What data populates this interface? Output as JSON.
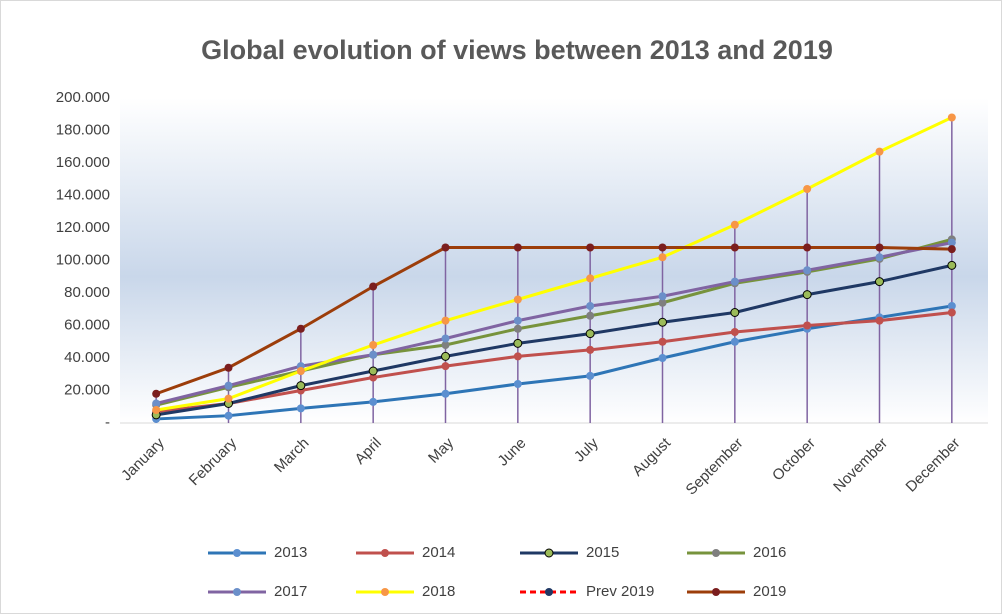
{
  "chart_data": {
    "type": "line",
    "title": "Global  evolution  of views between 2013 and 2019",
    "categories": [
      "January",
      "February",
      "March",
      "April",
      "May",
      "June",
      "July",
      "August",
      "September",
      "October",
      "November",
      "December"
    ],
    "ylim": [
      0,
      200000
    ],
    "yticks": [
      {
        "value": 0,
        "label": "-"
      },
      {
        "value": 20000,
        "label": "20.000"
      },
      {
        "value": 40000,
        "label": "40.000"
      },
      {
        "value": 60000,
        "label": "60.000"
      },
      {
        "value": 80000,
        "label": "80.000"
      },
      {
        "value": 100000,
        "label": "100.000"
      },
      {
        "value": 120000,
        "label": "120.000"
      },
      {
        "value": 140000,
        "label": "140.000"
      },
      {
        "value": 160000,
        "label": "160.000"
      },
      {
        "value": 180000,
        "label": "180.000"
      },
      {
        "value": 200000,
        "label": "200.000"
      }
    ],
    "grid": false,
    "drop_lines": true,
    "drop_line_color": "#8064a2",
    "legend": "bottom",
    "series": [
      {
        "name": "2013",
        "color": "#2e75b6",
        "marker_color": "#5b8fd0",
        "values": [
          2500,
          4500,
          9000,
          13000,
          18000,
          24000,
          29000,
          40000,
          50000,
          58000,
          65000,
          72000
        ]
      },
      {
        "name": "2014",
        "color": "#c0504d",
        "marker_color": "#c0504d",
        "values": [
          7000,
          12000,
          20000,
          28000,
          35000,
          41000,
          45000,
          50000,
          56000,
          60000,
          63000,
          68000
        ]
      },
      {
        "name": "2015",
        "color": "#1f3864",
        "marker_color": "#9bbb59",
        "values": [
          5000,
          12000,
          23000,
          32000,
          41000,
          49000,
          55000,
          62000,
          68000,
          79000,
          87000,
          97000
        ]
      },
      {
        "name": "2016",
        "color": "#77933c",
        "marker_color": "#7f7f7f",
        "values": [
          11000,
          22000,
          32000,
          42000,
          48000,
          58000,
          66000,
          74000,
          86000,
          93000,
          101000,
          113000
        ]
      },
      {
        "name": "2017",
        "color": "#8064a2",
        "marker_color": "#6b8fc9",
        "values": [
          12000,
          23000,
          35000,
          42000,
          52000,
          63000,
          72000,
          78000,
          87000,
          94000,
          102000,
          111000
        ]
      },
      {
        "name": "2018",
        "color": "#ffff00",
        "marker_color": "#f79646",
        "values": [
          8000,
          15000,
          32000,
          48000,
          63000,
          76000,
          89000,
          102000,
          122000,
          144000,
          167000,
          188000
        ]
      },
      {
        "name": "Prev 2019",
        "color": "#ff0000",
        "marker_color": "#1f3864",
        "dashed": true,
        "values": [
          null,
          null,
          null,
          null,
          null,
          null,
          null,
          null,
          null,
          null,
          null,
          null
        ]
      },
      {
        "name": "2019",
        "color": "#9c3d0a",
        "marker_color": "#7b1e1e",
        "values": [
          18000,
          34000,
          58000,
          84000,
          108000,
          108000,
          108000,
          108000,
          108000,
          108000,
          108000,
          107000
        ]
      }
    ]
  }
}
